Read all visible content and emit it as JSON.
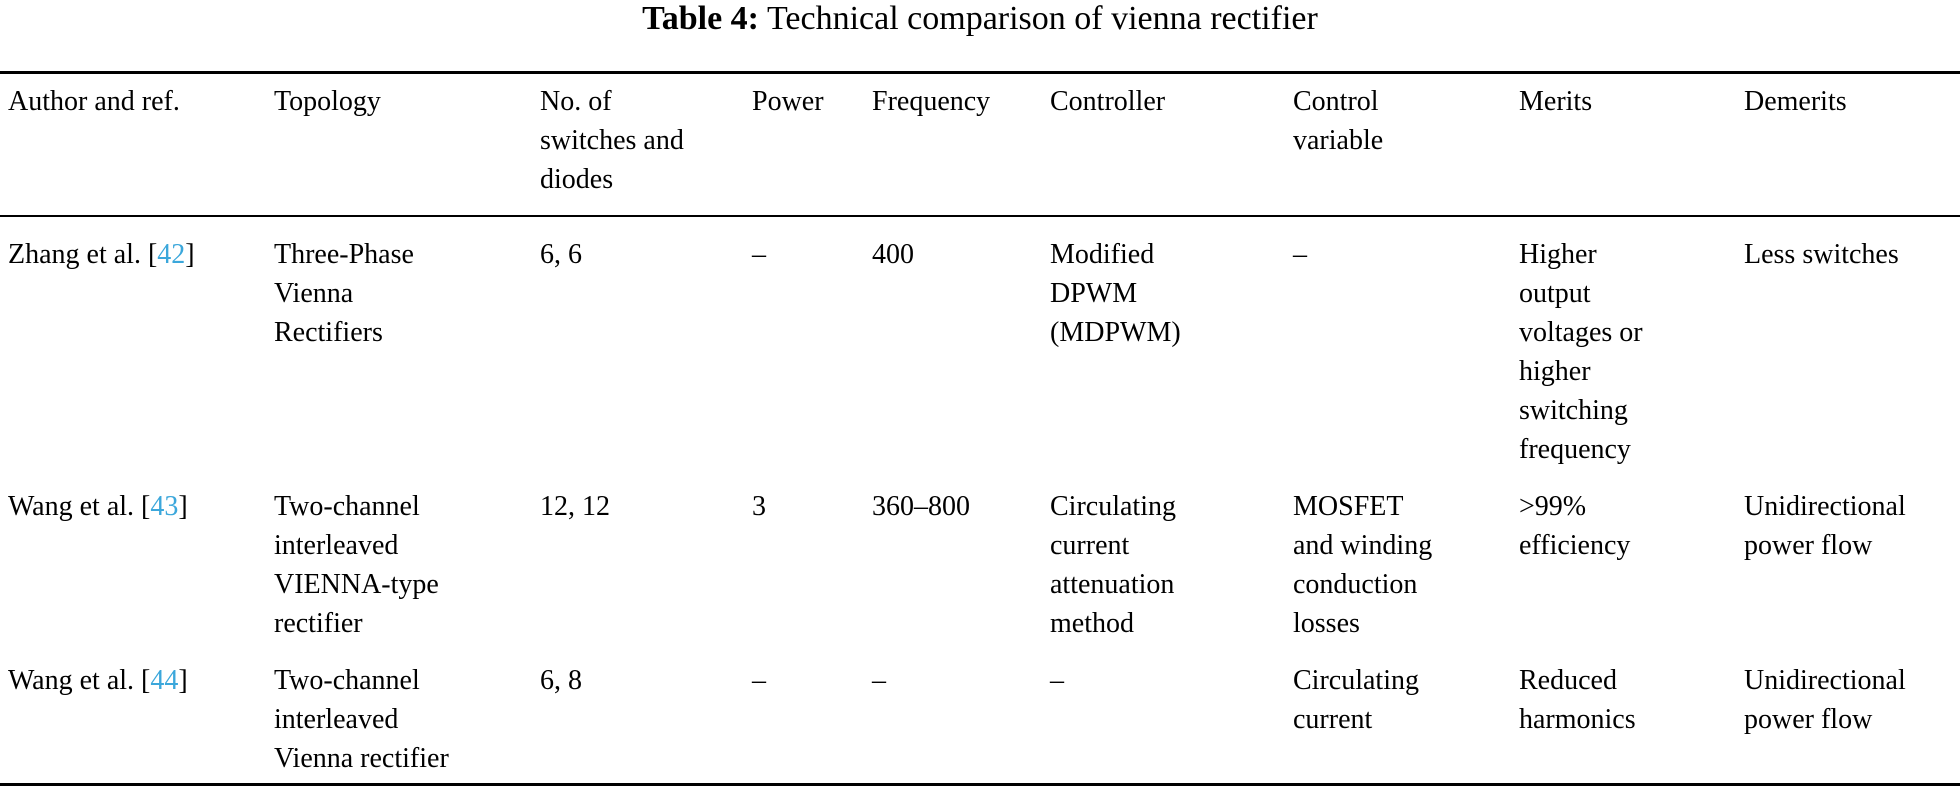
{
  "title": {
    "label": "Table 4:",
    "text": "Technical comparison of vienna rectifier"
  },
  "accent_color": "#3BA7DB",
  "columns": [
    "Author and ref.",
    "Topology",
    "No. of\nswitches and\ndiodes",
    "Power",
    "Frequency",
    "Controller",
    "Control\nvariable",
    "Merits",
    "Demerits"
  ],
  "rows": [
    {
      "author_prefix": "Zhang et al. [",
      "ref": "42",
      "author_suffix": "]",
      "topology": "Three-Phase\nVienna\nRectifiers",
      "switches_diodes": "6, 6",
      "power": "–",
      "frequency": "400",
      "controller": "Modified\nDPWM\n(MDPWM)",
      "control_variable": "–",
      "merits": "Higher\noutput\nvoltages or\nhigher\nswitching\nfrequency",
      "demerits": "Less switches"
    },
    {
      "author_prefix": "Wang et al. [",
      "ref": "43",
      "author_suffix": "]",
      "topology": "Two-channel\ninterleaved\nVIENNA-type\nrectifier",
      "switches_diodes": "12, 12",
      "power": "3",
      "frequency": "360–800",
      "controller": "Circulating\ncurrent\nattenuation\nmethod",
      "control_variable": "MOSFET\nand winding\nconduction\nlosses",
      "merits": ">99%\nefficiency",
      "demerits": "Unidirectional\npower flow"
    },
    {
      "author_prefix": "Wang et al. [",
      "ref": "44",
      "author_suffix": "]",
      "topology": "Two-channel\ninterleaved\nVienna rectifier",
      "switches_diodes": "6, 8",
      "power": "–",
      "frequency": "–",
      "controller": "–",
      "control_variable": "Circulating\ncurrent",
      "merits": "Reduced\nharmonics",
      "demerits": "Unidirectional\npower flow"
    }
  ]
}
